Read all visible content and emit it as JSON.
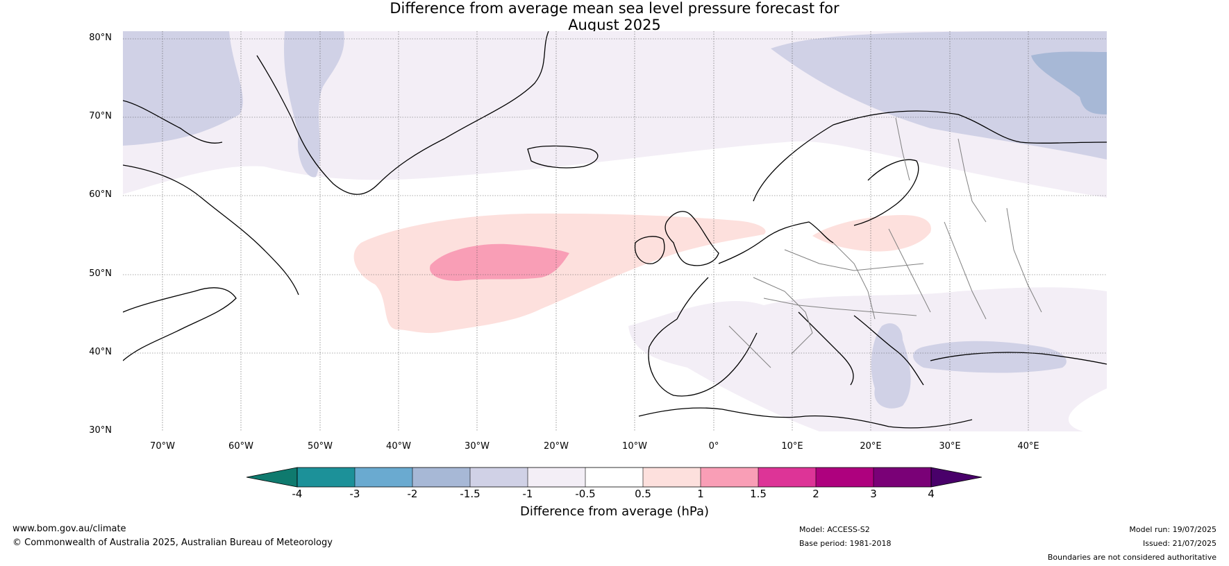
{
  "title": {
    "line1": "Difference from average mean sea level pressure forecast for",
    "line2": "August 2025"
  },
  "map": {
    "latitude_labels": [
      "80°N",
      "70°N",
      "60°N",
      "50°N",
      "40°N",
      "30°N"
    ],
    "longitude_labels": [
      "70°W",
      "60°W",
      "50°W",
      "40°W",
      "30°W",
      "20°W",
      "10°W",
      "0°",
      "10°E",
      "20°E",
      "30°E",
      "40°E"
    ],
    "extent": {
      "lon_min": -75,
      "lon_max": 50,
      "lat_min": 30,
      "lat_max": 81
    },
    "colors": {
      "ocean_background": "#ffffff",
      "coastline": "#000000",
      "borders": "#808080",
      "gridlines": "#555555"
    }
  },
  "colorbar": {
    "title": "Difference from average (hPa)",
    "tick_labels": [
      "-4",
      "-3",
      "-2",
      "-1.5",
      "-1",
      "-0.5",
      "0.5",
      "1",
      "1.5",
      "2",
      "3",
      "4"
    ],
    "bins": [
      {
        "range": "< -4",
        "color": "#0f7a6e"
      },
      {
        "range": "-4 to -3",
        "color": "#1c9199"
      },
      {
        "range": "-3 to -2",
        "color": "#6aaad0"
      },
      {
        "range": "-2 to -1.5",
        "color": "#a7b8d6"
      },
      {
        "range": "-1.5 to -1",
        "color": "#d0d1e6"
      },
      {
        "range": "-1 to -0.5",
        "color": "#f3eef6"
      },
      {
        "range": "-0.5 to 0.5",
        "color": "#ffffff"
      },
      {
        "range": "0.5 to 1",
        "color": "#fde0dd"
      },
      {
        "range": "1 to 1.5",
        "color": "#f99eb6"
      },
      {
        "range": "1.5 to 2",
        "color": "#dd3497"
      },
      {
        "range": "2 to 3",
        "color": "#ae017e"
      },
      {
        "range": "3 to 4",
        "color": "#7a0177"
      },
      {
        "range": "> 4",
        "color": "#49006a"
      }
    ]
  },
  "footer": {
    "website": "www.bom.gov.au/climate",
    "copyright": "© Commonwealth of Australia 2025, Australian Bureau of Meteorology",
    "model": "Model: ACCESS-S2",
    "base_period": "Base period: 1981-2018",
    "model_run": "Model run: 19/07/2025",
    "issued": "Issued: 21/07/2025",
    "disclaimer": "Boundaries are not considered authoritative"
  }
}
